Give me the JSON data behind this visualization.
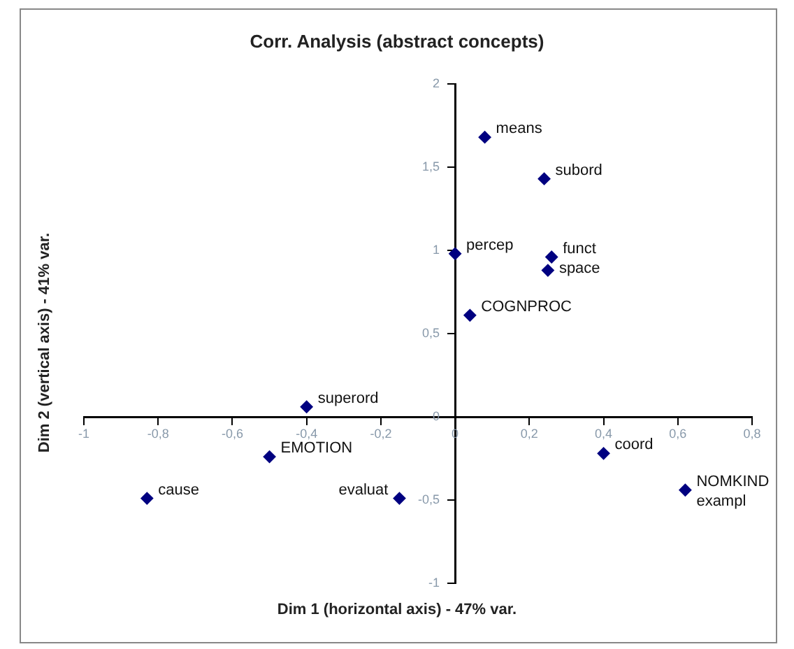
{
  "chart_data": {
    "type": "scatter",
    "title": "Corr. Analysis (abstract concepts)",
    "xlabel": "Dim 1 (horizontal axis) - 47% var.",
    "ylabel": "Dim 2 (vertical axis) - 41% var.",
    "x": [
      -0.4,
      -0.5,
      -0.83,
      -0.15,
      0.08,
      0.24,
      0.0,
      0.26,
      0.25,
      0.04,
      0.4,
      0.62
    ],
    "series": [
      {
        "color": "#000080",
        "values": [
          0.06,
          -0.24,
          -0.49,
          -0.49,
          1.68,
          1.43,
          0.98,
          0.96,
          0.88,
          0.61,
          -0.22,
          -0.44
        ]
      }
    ],
    "annotations": [
      {
        "text": "superord",
        "x": -0.4,
        "y": 0.06
      },
      {
        "text": "EMOTION",
        "x": -0.5,
        "y": -0.24
      },
      {
        "text": "cause",
        "x": -0.83,
        "y": -0.49
      },
      {
        "text": "evaluat",
        "x": -0.15,
        "y": -0.49
      },
      {
        "text": "means",
        "x": 0.08,
        "y": 1.68
      },
      {
        "text": "subord",
        "x": 0.24,
        "y": 1.43
      },
      {
        "text": "percep",
        "x": 0.0,
        "y": 0.98
      },
      {
        "text": "funct",
        "x": 0.26,
        "y": 0.96
      },
      {
        "text": "space",
        "x": 0.25,
        "y": 0.88
      },
      {
        "text": "COGNPROC",
        "x": 0.04,
        "y": 0.61
      },
      {
        "text": "coord",
        "x": 0.4,
        "y": -0.22
      },
      {
        "text": "NOMKIND",
        "x": 0.62,
        "y": -0.44
      },
      {
        "text": "exampl",
        "x": 0.62,
        "y": -0.44
      }
    ],
    "xlim": [
      -1,
      0.8
    ],
    "xticks": [
      -1,
      {
        "value": -0.8,
        "label": "-0,8"
      },
      {
        "value": -0.6,
        "label": "-0,6"
      },
      {
        "value": -0.4,
        "label": "-0,4"
      },
      {
        "value": -0.2,
        "label": "-0,2"
      },
      0,
      {
        "value": 0.2,
        "label": "0,2"
      },
      {
        "value": 0.4,
        "label": "0,4"
      },
      {
        "value": 0.6,
        "label": "0,6"
      },
      {
        "value": 0.8,
        "label": "0,8"
      }
    ],
    "ylim": [
      -1,
      2
    ],
    "yticks": [
      -1,
      {
        "value": -0.5,
        "label": "-0,5"
      },
      0,
      {
        "value": 0.5,
        "label": "0,5"
      },
      1,
      {
        "value": 1.5,
        "label": "1,5"
      },
      2
    ],
    "grid": false,
    "legend": false,
    "marker": "diamond"
  }
}
